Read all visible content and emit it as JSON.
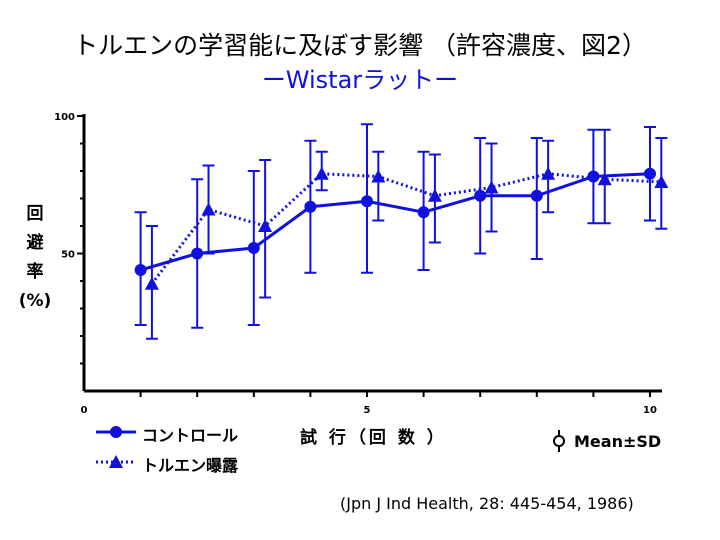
{
  "title": "トルエンの学習能に及ぼす影響 （許容濃度、図2）",
  "subtitle": "ーWistarラットー",
  "colors": {
    "accent": "#1010e0",
    "axis": "#000000"
  },
  "chart_data": {
    "type": "line",
    "ylabel_chars": [
      "回",
      "避",
      "率",
      "(%)"
    ],
    "xlabel": "試 行（回 数 ）",
    "xlim": [
      0,
      10
    ],
    "ylim": [
      0,
      100
    ],
    "xticks": [
      "0",
      "5",
      "10"
    ],
    "yticks": [
      "50",
      "100"
    ],
    "error_label": "Mean±SD",
    "series": [
      {
        "name": "コントロール",
        "style": "solid",
        "marker": "circle",
        "x": [
          1,
          2,
          3,
          4,
          5,
          6,
          7,
          8,
          9,
          10
        ],
        "y": [
          44,
          50,
          52,
          67,
          69,
          65,
          71,
          71,
          78,
          79
        ],
        "sd_low": [
          24,
          23,
          24,
          43,
          43,
          44,
          50,
          48,
          61,
          62
        ],
        "sd_high": [
          65,
          77,
          80,
          91,
          97,
          87,
          92,
          92,
          95,
          96
        ]
      },
      {
        "name": "トルエン曝露",
        "style": "dotted",
        "marker": "triangle",
        "x": [
          1.2,
          2.2,
          3.2,
          4.2,
          5.2,
          6.2,
          7.2,
          8.2,
          9.2,
          10.2
        ],
        "y": [
          39,
          66,
          60,
          79,
          78,
          71,
          74,
          79,
          77,
          76
        ],
        "sd_low": [
          19,
          50,
          34,
          73,
          62,
          54,
          58,
          65,
          61,
          59
        ],
        "sd_high": [
          60,
          82,
          84,
          87,
          87,
          86,
          90,
          91,
          95,
          92
        ]
      }
    ]
  },
  "citation": "(Jpn J Ind Health, 28: 445-454, 1986)"
}
